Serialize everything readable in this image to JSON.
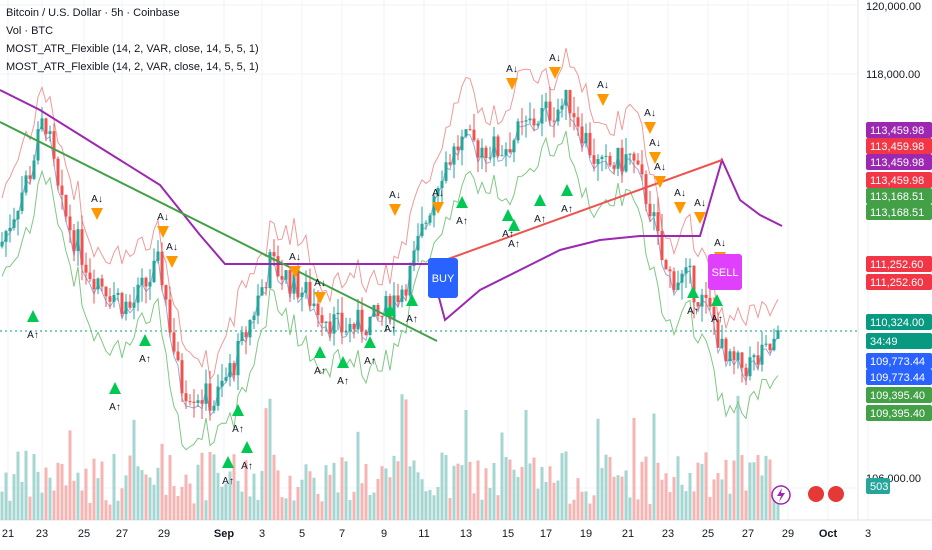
{
  "legend": {
    "title": "Bitcoin / U.S. Dollar · 5h · Coinbase",
    "volume": "Vol · BTC",
    "indicator_1": "MOST_ATR_Flexible (14, 2, VAR, close, 14, 5, 5, 1)",
    "indicator_2": "MOST_ATR_Flexible (14, 2, VAR, close, 14, 5, 5, 1)"
  },
  "chart_data": {
    "type": "line",
    "title": "Bitcoin / U.S. Dollar · 5h · Coinbase",
    "y_ticks": [
      "120,000.00",
      "118,000.00",
      "106,000.00"
    ],
    "x_ticks": [
      "21",
      "23",
      "25",
      "27",
      "29",
      "Sep",
      "3",
      "5",
      "7",
      "9",
      "11",
      "13",
      "15",
      "17",
      "19",
      "21",
      "23",
      "25",
      "27",
      "29",
      "Oct",
      "3"
    ],
    "price_badges": [
      {
        "value": "113,459.98",
        "color": "#9c27b0"
      },
      {
        "value": "113,459.98",
        "color": "#f23645"
      },
      {
        "value": "113,459.98",
        "color": "#9c27b0"
      },
      {
        "value": "113,459.98",
        "color": "#f23645"
      },
      {
        "value": "113,168.51",
        "color": "#43a047"
      },
      {
        "value": "113,168.51",
        "color": "#43a047"
      },
      {
        "value": "111,252.60",
        "color": "#f23645"
      },
      {
        "value": "111,252.60",
        "color": "#f23645"
      },
      {
        "value": "110,324.00",
        "color": "#089981"
      },
      {
        "value": "34:49",
        "color": "#089981"
      },
      {
        "value": "109,773.44",
        "color": "#2962ff"
      },
      {
        "value": "109,773.44",
        "color": "#2962ff"
      },
      {
        "value": "109,395.40",
        "color": "#43a047"
      },
      {
        "value": "109,395.40",
        "color": "#43a047"
      },
      {
        "value": "503",
        "color": "#26a69a"
      }
    ],
    "signals": [
      {
        "label": "BUY",
        "color": "#2962ff"
      },
      {
        "label": "SELL",
        "color": "#e040fb"
      }
    ],
    "marker_up": "A↑",
    "marker_down": "A↓",
    "colors": {
      "up": "#26a69a",
      "down": "#ef5350",
      "most": "#9c27b0",
      "trend_green": "#43a047",
      "trend_red": "#ef5350"
    }
  }
}
